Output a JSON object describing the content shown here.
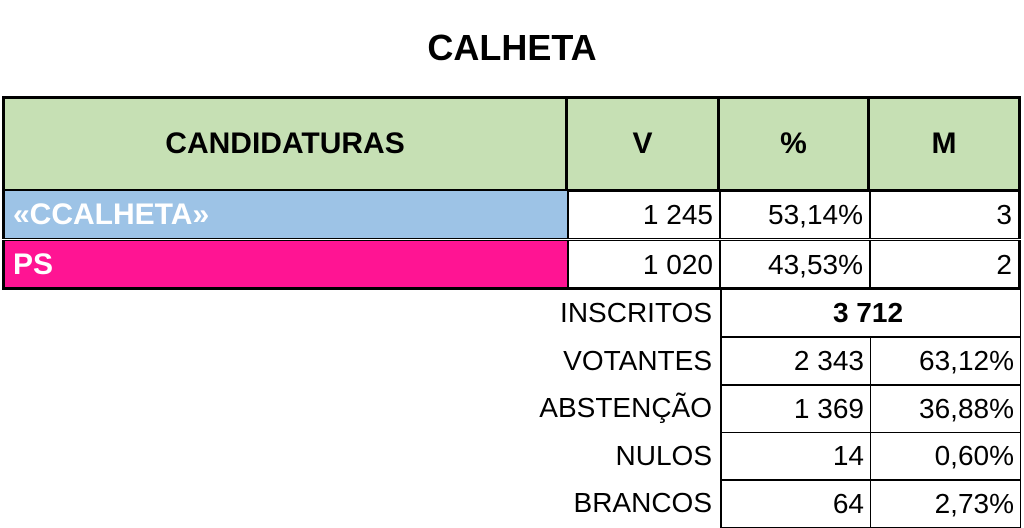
{
  "title": "CALHETA",
  "table": {
    "header": [
      "CANDIDATURAS",
      "V",
      "%",
      "M"
    ],
    "rows": [
      [
        "«CCALHETA»",
        "1 245",
        "53,14%",
        "3"
      ],
      [
        "PS",
        "1 020",
        "43,53%",
        "2"
      ]
    ]
  },
  "summary": {
    "inscritos": [
      "INSCRITOS",
      "3 712"
    ],
    "rows": [
      [
        "VOTANTES",
        "2 343",
        "63,12%"
      ],
      [
        "ABSTENÇÃO",
        "1 369",
        "36,88%"
      ],
      [
        "NULOS",
        "14",
        "0,60%"
      ],
      [
        "BRANCOS",
        "64",
        "2,73%"
      ]
    ]
  }
}
